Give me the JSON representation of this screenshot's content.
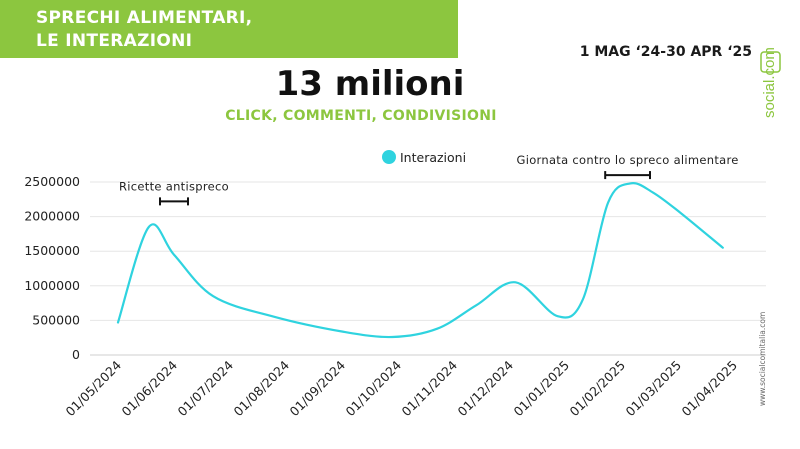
{
  "header": {
    "title_line1": "SPRECHI ALIMENTARI,",
    "title_line2": "LE INTERAZIONI",
    "date_range": "1 MAG ‘24-30 APR ‘25",
    "brand": "social.com",
    "credit": "www.socialcomitalia.com"
  },
  "headline": "13 milioni",
  "subheadline": "CLICK, COMMENTI, CONDIVISIONI",
  "colors": {
    "banner": "#8cc63f",
    "accent_green": "#8cc63f",
    "series": "#2fd3df"
  },
  "chart_data": {
    "type": "line",
    "title": "13 milioni",
    "subtitle": "CLICK, COMMENTI, CONDIVISIONI",
    "legend": "top-center",
    "grid": true,
    "categories": [
      "01/05/2024",
      "01/06/2024",
      "01/07/2024",
      "01/08/2024",
      "01/09/2024",
      "01/10/2024",
      "01/11/2024",
      "01/12/2024",
      "01/01/2025",
      "01/02/2025",
      "01/03/2025",
      "01/04/2025"
    ],
    "yticks": [
      "0",
      "500000",
      "1000000",
      "1500000",
      "2000000",
      "2500000"
    ],
    "ylim": [
      0,
      2500000
    ],
    "series": [
      {
        "name": "Interazioni",
        "x": [
          0,
          0.55,
          1.0,
          1.7,
          2.8,
          4.0,
          4.9,
          5.7,
          6.4,
          7.1,
          7.85,
          8.3,
          8.75,
          9.15,
          9.55,
          10.05,
          10.8
        ],
        "values": [
          470000,
          1850000,
          1450000,
          850000,
          550000,
          340000,
          260000,
          380000,
          720000,
          1050000,
          560000,
          800000,
          2200000,
          2480000,
          2350000,
          2050000,
          1550000
        ]
      }
    ],
    "annotations": [
      {
        "label": "Ricette antispreco",
        "x_from": 0.75,
        "x_to": 1.25,
        "y": 2220000
      },
      {
        "label": "Giornata contro lo spreco alimentare",
        "x_from": 8.7,
        "x_to": 9.5,
        "y": 2600000
      }
    ]
  }
}
